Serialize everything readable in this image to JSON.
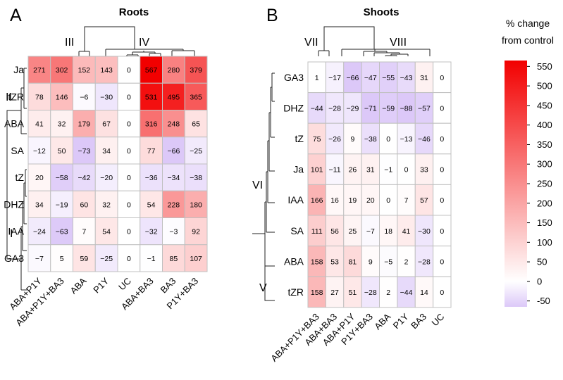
{
  "chart_data": [
    {
      "type": "heatmap",
      "panel_label": "A",
      "title": "Roots",
      "rows": [
        "Ja",
        "tZR",
        "ABA",
        "SA",
        "tZ",
        "DHZ",
        "IAA",
        "GA3"
      ],
      "columns": [
        "ABA+P1Y",
        "ABA+P1Y+BA3",
        "ABA",
        "P1Y",
        "UC",
        "ABA+BA3",
        "BA3",
        "P1Y+BA3"
      ],
      "values": [
        [
          271,
          302,
          152,
          143,
          0,
          567,
          280,
          379
        ],
        [
          78,
          146,
          -6,
          -30,
          0,
          531,
          495,
          365
        ],
        [
          41,
          32,
          179,
          67,
          0,
          316,
          248,
          65
        ],
        [
          -12,
          50,
          -73,
          34,
          0,
          77,
          -66,
          -25
        ],
        [
          20,
          -58,
          -42,
          -20,
          0,
          -36,
          -34,
          -38
        ],
        [
          34,
          -19,
          60,
          32,
          0,
          54,
          228,
          180
        ],
        [
          -24,
          -63,
          7,
          54,
          0,
          -32,
          -3,
          92
        ],
        [
          -7,
          5,
          59,
          -25,
          0,
          -1,
          85,
          107
        ]
      ],
      "value_labels": [
        [
          "271",
          "302",
          "152",
          "143",
          "0",
          "567",
          "280",
          "379"
        ],
        [
          "78",
          "146",
          "−6",
          "−30",
          "0",
          "531",
          "495",
          "365"
        ],
        [
          "41",
          "32",
          "179",
          "67",
          "0",
          "316",
          "248",
          "65"
        ],
        [
          "−12",
          "50",
          "−73",
          "34",
          "0",
          "77",
          "−66",
          "−25"
        ],
        [
          "20",
          "−58",
          "−42",
          "−20",
          "0",
          "−36",
          "−34",
          "−38"
        ],
        [
          "34",
          "−19",
          "60",
          "32",
          "0",
          "54",
          "228",
          "180"
        ],
        [
          "−24",
          "−63",
          "7",
          "54",
          "0",
          "−32",
          "−3",
          "92"
        ],
        [
          "−7",
          "5",
          "59",
          "−25",
          "0",
          "−1",
          "85",
          "107"
        ]
      ],
      "column_clusters": [
        "III",
        "IV"
      ],
      "row_clusters": [
        "II",
        "I"
      ]
    },
    {
      "type": "heatmap",
      "panel_label": "B",
      "title": "Shoots",
      "rows": [
        "GA3",
        "DHZ",
        "tZ",
        "Ja",
        "IAA",
        "SA",
        "ABA",
        "tZR"
      ],
      "columns": [
        "ABA+P1Y+BA3",
        "ABA+BA3",
        "ABA+P1Y",
        "P1Y+BA3",
        "ABA",
        "P1Y",
        "BA3",
        "UC"
      ],
      "values": [
        [
          1,
          -17,
          -66,
          -47,
          -55,
          -43,
          31,
          0
        ],
        [
          -44,
          -28,
          -29,
          -71,
          -59,
          -88,
          -57,
          0
        ],
        [
          75,
          -26,
          9,
          -38,
          0,
          -13,
          -46,
          0
        ],
        [
          101,
          -11,
          26,
          31,
          -1,
          0,
          33,
          0
        ],
        [
          166,
          16,
          19,
          20,
          0,
          7,
          57,
          0
        ],
        [
          111,
          56,
          25,
          -7,
          18,
          41,
          -30,
          0
        ],
        [
          158,
          53,
          81,
          9,
          -5,
          2,
          -28,
          0
        ],
        [
          158,
          27,
          51,
          -28,
          2,
          -44,
          14,
          0
        ]
      ],
      "value_labels": [
        [
          "1",
          "−17",
          "−66",
          "−47",
          "−55",
          "−43",
          "31",
          "0"
        ],
        [
          "−44",
          "−28",
          "−29",
          "−71",
          "−59",
          "−88",
          "−57",
          "0"
        ],
        [
          "75",
          "−26",
          "9",
          "−38",
          "0",
          "−13",
          "−46",
          "0"
        ],
        [
          "101",
          "−11",
          "26",
          "31",
          "−1",
          "0",
          "33",
          "0"
        ],
        [
          "166",
          "16",
          "19",
          "20",
          "0",
          "7",
          "57",
          "0"
        ],
        [
          "111",
          "56",
          "25",
          "−7",
          "18",
          "41",
          "−30",
          "0"
        ],
        [
          "158",
          "53",
          "81",
          "9",
          "−5",
          "2",
          "−28",
          "0"
        ],
        [
          "158",
          "27",
          "51",
          "−28",
          "2",
          "−44",
          "14",
          "0"
        ]
      ],
      "column_clusters": [
        "VII",
        "VIII"
      ],
      "row_clusters": [
        "VI",
        "V"
      ]
    }
  ],
  "legend": {
    "title_line1": "% change",
    "title_line2": "from control",
    "range": [
      -65,
      565
    ],
    "ticks": [
      550,
      500,
      450,
      400,
      350,
      300,
      250,
      200,
      150,
      100,
      50,
      0,
      -50
    ],
    "tick_labels": [
      "550",
      "500",
      "450",
      "400",
      "350",
      "300",
      "250",
      "200",
      "150",
      "100",
      "50",
      "0",
      "-50"
    ]
  },
  "colors": {
    "high": "#f20000",
    "zero": "#ffffff",
    "low": "#dcc8f8",
    "grid": "#c0c0c0",
    "dendrogram": "#222222"
  }
}
